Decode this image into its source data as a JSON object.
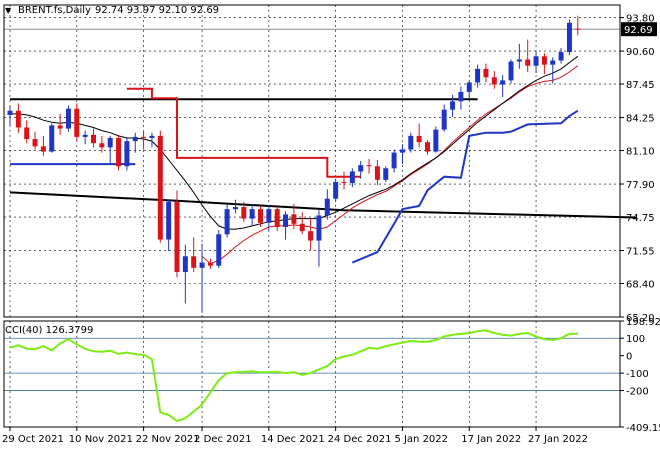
{
  "header": {
    "symbol_label": "BRENT.fs,Daily",
    "ohlc_label": "92.74 93.97 92.10 92.69",
    "arrow_glyph": "▼"
  },
  "chart_data": [
    {
      "type": "candlestick",
      "title": "BRENT.fs,Daily 92.74 93.97 92.10 92.69",
      "ylim": [
        65.2,
        95.0
      ],
      "y_ticks": [
        93.8,
        90.6,
        87.45,
        84.25,
        81.1,
        77.9,
        74.75,
        71.55,
        68.4,
        65.2
      ],
      "y_tick_labels": [
        "93.80",
        "90.60",
        "87.45",
        "84.25",
        "81.10",
        "77.90",
        "74.75",
        "71.55",
        "68.40",
        "65.20"
      ],
      "current_price_label": "92.69",
      "current_price": 92.69,
      "x_tick_labels": [
        "29 Oct 2021",
        "10 Nov 2021",
        "22 Nov 2021",
        "2 Dec 2021",
        "14 Dec 2021",
        "24 Dec 2021",
        "5 Jan 2022",
        "17 Jan 2022",
        "27 Jan 2022"
      ],
      "x_tick_index": [
        0,
        8,
        16,
        23,
        31,
        39,
        47,
        55,
        63
      ],
      "up_color": "#1f35c4",
      "down_color": "#d8141a",
      "candles": [
        [
          84.5,
          85.3,
          83.5,
          84.9
        ],
        [
          84.9,
          85.6,
          82.8,
          83.3
        ],
        [
          83.3,
          84.0,
          81.8,
          82.2
        ],
        [
          82.2,
          82.9,
          81.2,
          81.5
        ],
        [
          81.5,
          82.5,
          80.6,
          81.0
        ],
        [
          81.0,
          83.7,
          80.9,
          83.5
        ],
        [
          83.5,
          84.6,
          82.6,
          83.2
        ],
        [
          83.2,
          85.4,
          82.9,
          85.1
        ],
        [
          85.1,
          85.6,
          82.0,
          82.4
        ],
        [
          82.4,
          83.0,
          81.7,
          82.6
        ],
        [
          82.6,
          83.2,
          81.4,
          81.8
        ],
        [
          81.8,
          82.5,
          80.9,
          81.4
        ],
        [
          81.4,
          82.5,
          79.8,
          82.3
        ],
        [
          82.3,
          82.6,
          79.2,
          79.6
        ],
        [
          79.6,
          82.4,
          79.2,
          82.0
        ],
        [
          82.0,
          82.8,
          80.9,
          82.4
        ],
        [
          82.4,
          82.9,
          81.2,
          82.3
        ],
        [
          82.3,
          82.8,
          81.4,
          82.5
        ],
        [
          82.5,
          83.0,
          72.3,
          72.6
        ],
        [
          72.6,
          76.4,
          71.5,
          76.2
        ],
        [
          76.2,
          77.3,
          69.0,
          69.5
        ],
        [
          69.5,
          72.1,
          66.5,
          71.0
        ],
        [
          71.0,
          72.8,
          69.5,
          69.9
        ],
        [
          69.9,
          72.2,
          65.6,
          70.4
        ],
        [
          70.4,
          70.8,
          69.8,
          70.1
        ],
        [
          70.1,
          73.5,
          69.9,
          73.1
        ],
        [
          73.1,
          76.0,
          72.8,
          75.5
        ],
        [
          75.5,
          76.4,
          75.1,
          75.7
        ],
        [
          75.7,
          76.2,
          74.3,
          74.6
        ],
        [
          74.6,
          76.0,
          73.9,
          75.5
        ],
        [
          75.5,
          75.8,
          73.8,
          74.2
        ],
        [
          74.2,
          75.9,
          73.5,
          75.5
        ],
        [
          75.5,
          75.9,
          73.4,
          73.8
        ],
        [
          73.8,
          75.3,
          72.6,
          75.0
        ],
        [
          75.0,
          76.0,
          73.6,
          74.1
        ],
        [
          74.1,
          75.2,
          73.1,
          73.4
        ],
        [
          73.4,
          74.6,
          71.6,
          72.5
        ],
        [
          72.5,
          75.4,
          70.0,
          74.9
        ],
        [
          74.9,
          77.4,
          74.5,
          76.5
        ],
        [
          76.5,
          78.4,
          76.2,
          78.1
        ],
        [
          78.1,
          79.1,
          77.4,
          78.0
        ],
        [
          78.0,
          79.4,
          77.6,
          79.1
        ],
        [
          79.1,
          80.1,
          78.4,
          79.7
        ],
        [
          79.7,
          80.3,
          78.9,
          79.6
        ],
        [
          79.6,
          80.2,
          77.8,
          78.3
        ],
        [
          78.3,
          79.6,
          78.1,
          79.4
        ],
        [
          79.4,
          81.2,
          79.0,
          80.9
        ],
        [
          80.9,
          81.7,
          79.8,
          81.2
        ],
        [
          81.2,
          82.8,
          80.9,
          82.5
        ],
        [
          82.5,
          83.7,
          81.4,
          81.9
        ],
        [
          81.9,
          82.1,
          80.7,
          81.0
        ],
        [
          81.0,
          83.4,
          80.9,
          83.1
        ],
        [
          83.1,
          85.5,
          82.9,
          85.0
        ],
        [
          85.0,
          86.4,
          84.3,
          85.8
        ],
        [
          85.8,
          87.2,
          85.0,
          86.7
        ],
        [
          86.7,
          87.8,
          86.1,
          87.6
        ],
        [
          87.6,
          89.3,
          87.1,
          88.9
        ],
        [
          88.9,
          89.4,
          87.6,
          88.1
        ],
        [
          88.1,
          88.7,
          87.0,
          87.4
        ],
        [
          87.4,
          88.3,
          86.2,
          87.8
        ],
        [
          87.8,
          89.8,
          87.5,
          89.6
        ],
        [
          89.6,
          91.3,
          88.9,
          89.8
        ],
        [
          89.8,
          91.7,
          88.6,
          89.2
        ],
        [
          89.2,
          90.5,
          88.5,
          90.1
        ],
        [
          90.1,
          90.4,
          88.4,
          89.3
        ],
        [
          89.3,
          90.0,
          87.5,
          89.7
        ],
        [
          89.7,
          90.9,
          89.4,
          90.5
        ],
        [
          90.5,
          93.6,
          90.2,
          93.3
        ],
        [
          92.74,
          93.97,
          92.1,
          92.69
        ]
      ],
      "overlays": {
        "moving_average_black": [
          84.6,
          84.6,
          84.5,
          84.3,
          84.0,
          83.8,
          83.7,
          83.8,
          83.7,
          83.5,
          83.3,
          83.0,
          82.8,
          82.5,
          82.3,
          82.3,
          82.2,
          82.0,
          81.2,
          80.2,
          79.2,
          78.2,
          77.1,
          75.9,
          74.8,
          73.9,
          73.6,
          73.6,
          73.7,
          73.9,
          74.1,
          74.3,
          74.4,
          74.5,
          74.6,
          74.6,
          74.6,
          74.6,
          74.9,
          75.2,
          75.6,
          76.0,
          76.4,
          76.8,
          77.1,
          77.4,
          77.8,
          78.3,
          78.9,
          79.4,
          79.9,
          80.4,
          81.0,
          81.7,
          82.4,
          83.1,
          83.8,
          84.4,
          85.0,
          85.6,
          86.2,
          86.8,
          87.3,
          87.8,
          88.2,
          88.5,
          88.9,
          89.5,
          90.1
        ],
        "moving_average_red": [
          null,
          null,
          null,
          null,
          null,
          null,
          null,
          null,
          null,
          null,
          null,
          null,
          null,
          null,
          null,
          null,
          null,
          null,
          null,
          null,
          null,
          null,
          null,
          71.0,
          70.3,
          70.6,
          71.2,
          71.9,
          72.5,
          73.0,
          73.4,
          73.8,
          73.9,
          73.9,
          74.0,
          73.9,
          73.8,
          73.6,
          73.8,
          74.4,
          75.0,
          75.6,
          76.1,
          76.5,
          76.9,
          77.2,
          77.7,
          78.2,
          78.8,
          79.3,
          79.8,
          80.4,
          81.1,
          81.9,
          82.6,
          83.3,
          84.0,
          84.6,
          85.1,
          85.6,
          86.1,
          86.7,
          87.2,
          87.5,
          87.7,
          87.8,
          88.1,
          88.6,
          89.2
        ],
        "support_resistance_black": [
          [
            0,
            86.0
          ],
          [
            56,
            86.0
          ]
        ],
        "long_trend_black": [
          [
            0,
            77.1
          ],
          [
            20,
            76.3
          ],
          [
            40,
            75.4
          ],
          [
            60,
            75.0
          ],
          [
            75,
            74.7
          ]
        ],
        "donchian_blue": [
          [
            0,
            79.8
          ],
          [
            15,
            79.8
          ],
          [
            null,
            null
          ],
          [
            41,
            70.4
          ],
          [
            44,
            71.4
          ],
          [
            46,
            74.1
          ],
          [
            47,
            75.5
          ],
          [
            49,
            75.8
          ],
          [
            50,
            77.3
          ],
          [
            52,
            78.6
          ],
          [
            54,
            78.5
          ],
          [
            55,
            82.5
          ],
          [
            57,
            82.8
          ],
          [
            59,
            82.8
          ],
          [
            60,
            82.9
          ],
          [
            62,
            83.6
          ],
          [
            66,
            83.7
          ],
          [
            67,
            84.4
          ],
          [
            68,
            84.9
          ]
        ],
        "donchian_red_step": [
          [
            14,
            87.0
          ],
          [
            17,
            86.1
          ],
          [
            19,
            86.1
          ],
          [
            20,
            80.4
          ],
          [
            37,
            80.4
          ],
          [
            38,
            78.6
          ],
          [
            42,
            78.6
          ]
        ]
      }
    },
    {
      "type": "line",
      "title": "CCI(40) 126.3799",
      "indicator_label": "CCI(40) 126.3799",
      "ylim": [
        -409.15,
        198.92
      ],
      "y_ticks": [
        198.92,
        100,
        0,
        -100,
        -200,
        -409.15
      ],
      "y_tick_labels": [
        "198.9222",
        "100",
        "0",
        "-100",
        "-200",
        "-409.15"
      ],
      "levels": [
        100,
        -100,
        -200
      ],
      "line_color": "#7cec13",
      "series": [
        {
          "name": "CCI(40)",
          "values": [
            45,
            60,
            40,
            38,
            55,
            30,
            70,
            95,
            65,
            40,
            25,
            22,
            28,
            10,
            18,
            8,
            5,
            -20,
            -325,
            -340,
            -375,
            -360,
            -320,
            -280,
            -210,
            -140,
            -100,
            -95,
            -92,
            -90,
            -95,
            -95,
            -92,
            -100,
            -95,
            -110,
            -100,
            -80,
            -60,
            -20,
            -5,
            5,
            25,
            45,
            40,
            55,
            65,
            75,
            85,
            80,
            80,
            90,
            110,
            120,
            125,
            130,
            140,
            145,
            130,
            120,
            115,
            125,
            130,
            110,
            95,
            90,
            100,
            125,
            126
          ]
        }
      ]
    }
  ]
}
